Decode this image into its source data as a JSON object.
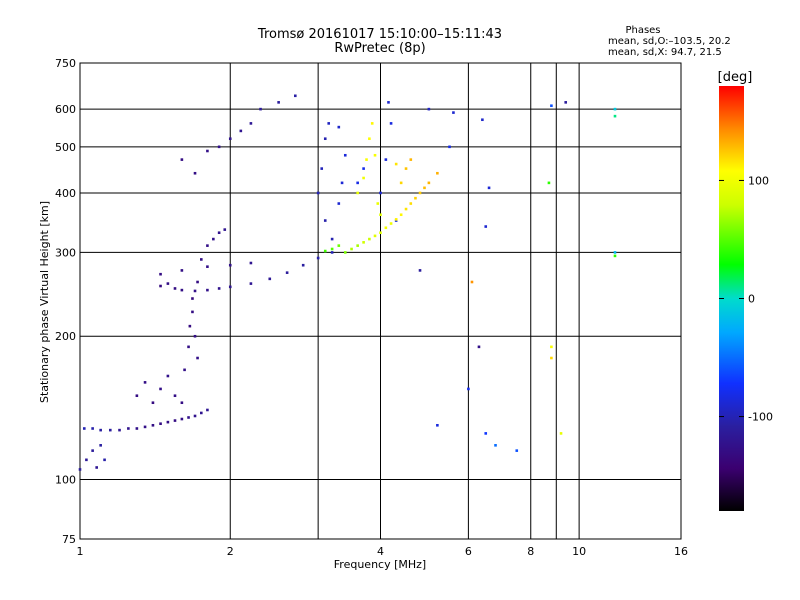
{
  "chart_data": {
    "type": "scatter",
    "title": "Tromsø 20161017 15:10:00–15:11:43",
    "subtitle": "RwPretec (8p)",
    "stats_header": "Phases",
    "stats_o": "mean, sd,O:–103.5, 20.2",
    "stats_x": "mean, sd,X:  94.7, 21.5",
    "xlabel": "Frequency [MHz]",
    "ylabel": "Stationary phase Virtual Height [km]",
    "x_scale": "log",
    "y_scale": "log",
    "xlim": [
      1,
      16
    ],
    "ylim": [
      75,
      750
    ],
    "x_ticks": [
      1,
      2,
      4,
      6,
      8,
      10,
      16
    ],
    "x_tick_labels": [
      "1",
      "2",
      "4",
      "6",
      "8",
      "10",
      "16"
    ],
    "x_minor": [
      3,
      9
    ],
    "y_ticks": [
      75,
      100,
      200,
      300,
      400,
      500,
      600,
      750
    ],
    "y_tick_labels": [
      "75",
      "100",
      "200",
      "300",
      "400",
      "500",
      "600",
      "750"
    ],
    "grid": true,
    "colorbar": {
      "label": "[deg]",
      "min": -180,
      "max": 180,
      "ticks": [
        100,
        0,
        -100
      ],
      "tick_labels": [
        "100",
        "0",
        "-100"
      ]
    },
    "series": [
      {
        "name": "O",
        "points": [
          [
            1.0,
            105,
            -110
          ],
          [
            1.03,
            110,
            -115
          ],
          [
            1.06,
            115,
            -112
          ],
          [
            1.1,
            118,
            -108
          ],
          [
            1.08,
            106,
            -118
          ],
          [
            1.12,
            110,
            -105
          ],
          [
            1.02,
            128,
            -100
          ],
          [
            1.06,
            128,
            -104
          ],
          [
            1.1,
            127,
            -108
          ],
          [
            1.15,
            127,
            -110
          ],
          [
            1.2,
            127,
            -118
          ],
          [
            1.25,
            128,
            -122
          ],
          [
            1.3,
            128,
            -125
          ],
          [
            1.35,
            129,
            -126
          ],
          [
            1.4,
            130,
            -128
          ],
          [
            1.45,
            131,
            -130
          ],
          [
            1.5,
            132,
            -128
          ],
          [
            1.55,
            133,
            -130
          ],
          [
            1.6,
            134,
            -126
          ],
          [
            1.65,
            135,
            -124
          ],
          [
            1.7,
            136,
            -122
          ],
          [
            1.75,
            138,
            -120
          ],
          [
            1.8,
            140,
            -118
          ],
          [
            1.3,
            150,
            -130
          ],
          [
            1.35,
            160,
            -128
          ],
          [
            1.4,
            145,
            -132
          ],
          [
            1.45,
            155,
            -126
          ],
          [
            1.5,
            165,
            -124
          ],
          [
            1.55,
            150,
            -128
          ],
          [
            1.6,
            145,
            -130
          ],
          [
            1.62,
            170,
            -126
          ],
          [
            1.65,
            190,
            -128
          ],
          [
            1.66,
            210,
            -132
          ],
          [
            1.68,
            225,
            -130
          ],
          [
            1.7,
            200,
            -128
          ],
          [
            1.72,
            180,
            -126
          ],
          [
            1.68,
            240,
            -134
          ],
          [
            1.72,
            260,
            -130
          ],
          [
            1.5,
            258,
            -128
          ],
          [
            1.45,
            255,
            -132
          ],
          [
            1.55,
            252,
            -130
          ],
          [
            1.6,
            250,
            -128
          ],
          [
            1.7,
            249,
            -126
          ],
          [
            1.8,
            250,
            -124
          ],
          [
            1.9,
            252,
            -122
          ],
          [
            2.0,
            254,
            -120
          ],
          [
            2.2,
            258,
            -118
          ],
          [
            2.4,
            264,
            -116
          ],
          [
            2.6,
            272,
            -112
          ],
          [
            2.8,
            282,
            -108
          ],
          [
            3.0,
            292,
            -104
          ],
          [
            3.2,
            300,
            -100
          ],
          [
            1.75,
            290,
            -128
          ],
          [
            1.8,
            310,
            -126
          ],
          [
            1.85,
            320,
            -124
          ],
          [
            1.9,
            330,
            -122
          ],
          [
            1.95,
            335,
            -120
          ],
          [
            1.45,
            270,
            -130
          ],
          [
            1.6,
            275,
            -128
          ],
          [
            1.8,
            280,
            -126
          ],
          [
            2.0,
            282,
            -124
          ],
          [
            2.2,
            285,
            -120
          ],
          [
            1.6,
            470,
            -130
          ],
          [
            1.7,
            440,
            -128
          ],
          [
            1.8,
            490,
            -126
          ],
          [
            1.9,
            500,
            -124
          ],
          [
            2.0,
            520,
            -122
          ],
          [
            2.1,
            540,
            -120
          ],
          [
            2.2,
            560,
            -116
          ],
          [
            2.3,
            600,
            -112
          ],
          [
            2.5,
            620,
            -110
          ],
          [
            2.7,
            640,
            -106
          ],
          [
            3.0,
            400,
            -100
          ],
          [
            3.05,
            450,
            -98
          ],
          [
            3.1,
            520,
            -102
          ],
          [
            3.15,
            560,
            -96
          ],
          [
            3.1,
            350,
            -104
          ],
          [
            3.2,
            320,
            -102
          ],
          [
            3.3,
            380,
            -90
          ],
          [
            3.35,
            420,
            -88
          ],
          [
            3.4,
            480,
            -86
          ],
          [
            3.3,
            550,
            -92
          ],
          [
            3.6,
            420,
            -82
          ],
          [
            3.7,
            450,
            -80
          ],
          [
            4.0,
            400,
            -88
          ],
          [
            4.1,
            470,
            -86
          ],
          [
            4.2,
            560,
            -84
          ],
          [
            4.15,
            620,
            -90
          ],
          [
            4.3,
            350,
            -84
          ]
        ]
      },
      {
        "name": "X",
        "points": [
          [
            3.4,
            300,
            60
          ],
          [
            3.6,
            310,
            70
          ],
          [
            3.8,
            320,
            80
          ],
          [
            4.0,
            330,
            90
          ],
          [
            4.2,
            345,
            100
          ],
          [
            4.4,
            360,
            110
          ],
          [
            4.6,
            380,
            118
          ],
          [
            4.8,
            400,
            124
          ],
          [
            5.0,
            420,
            130
          ],
          [
            3.5,
            305,
            72
          ],
          [
            3.7,
            315,
            82
          ],
          [
            3.9,
            325,
            92
          ],
          [
            4.1,
            338,
            102
          ],
          [
            4.3,
            352,
            112
          ],
          [
            4.5,
            370,
            116
          ],
          [
            4.7,
            390,
            122
          ],
          [
            4.9,
            410,
            128
          ],
          [
            3.6,
            400,
            95
          ],
          [
            3.7,
            430,
            100
          ],
          [
            3.75,
            470,
            105
          ],
          [
            3.8,
            520,
            108
          ],
          [
            3.85,
            560,
            110
          ],
          [
            3.9,
            480,
            104
          ],
          [
            3.95,
            380,
            96
          ],
          [
            4.0,
            360,
            92
          ],
          [
            3.3,
            310,
            55
          ],
          [
            3.2,
            305,
            50
          ],
          [
            3.1,
            302,
            45
          ],
          [
            4.4,
            420,
            120
          ],
          [
            4.5,
            450,
            126
          ],
          [
            4.6,
            470,
            130
          ],
          [
            4.3,
            460,
            116
          ],
          [
            5.2,
            440,
            132
          ]
        ]
      },
      {
        "name": "",
        "points": [
          [
            5.0,
            600,
            -95
          ],
          [
            5.6,
            590,
            -90
          ],
          [
            5.5,
            500,
            -80
          ],
          [
            6.4,
            570,
            -92
          ],
          [
            6.5,
            340,
            -90
          ],
          [
            6.6,
            410,
            -88
          ],
          [
            6.3,
            190,
            -125
          ],
          [
            6.0,
            155,
            -80
          ],
          [
            6.1,
            260,
            140
          ],
          [
            6.5,
            125,
            -70
          ],
          [
            6.8,
            118,
            -50
          ],
          [
            7.5,
            115,
            -60
          ],
          [
            8.8,
            610,
            -60
          ],
          [
            9.4,
            620,
            -110
          ],
          [
            8.8,
            190,
            105
          ],
          [
            8.8,
            180,
            120
          ],
          [
            9.2,
            125,
            95
          ],
          [
            8.7,
            420,
            40
          ],
          [
            11.8,
            600,
            -10
          ],
          [
            11.8,
            580,
            10
          ],
          [
            11.8,
            300,
            -20
          ],
          [
            11.8,
            295,
            40
          ],
          [
            4.8,
            275,
            -110
          ],
          [
            5.2,
            130,
            -85
          ]
        ]
      }
    ]
  }
}
